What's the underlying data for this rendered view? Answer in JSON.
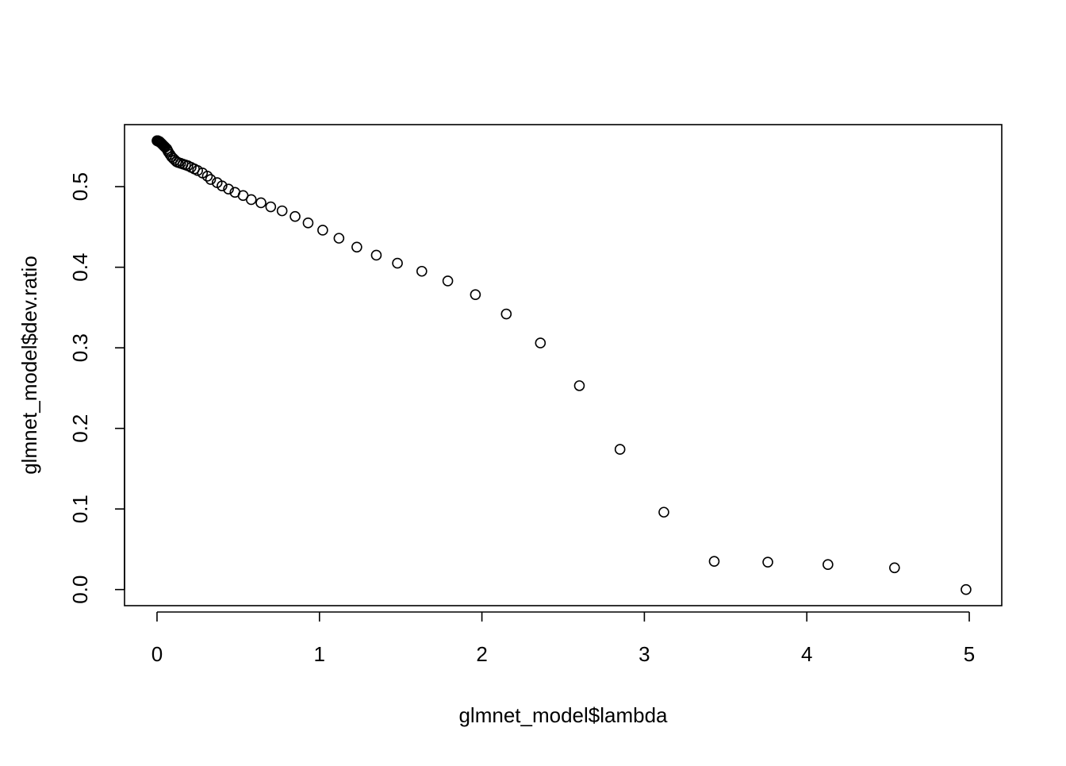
{
  "chart_data": {
    "type": "scatter",
    "title": "",
    "xlabel": "glmnet_model$lambda",
    "ylabel": "glmnet_model$dev.ratio",
    "xlim": [
      -0.2,
      5.2
    ],
    "ylim": [
      -0.02,
      0.577
    ],
    "x_ticks": [
      0,
      1,
      2,
      3,
      4,
      5
    ],
    "x_tick_labels": [
      "0",
      "1",
      "2",
      "3",
      "4",
      "5"
    ],
    "y_ticks": [
      0.0,
      0.1,
      0.2,
      0.3,
      0.4,
      0.5
    ],
    "y_tick_labels": [
      "0.0",
      "0.1",
      "0.2",
      "0.3",
      "0.4",
      "0.5"
    ],
    "grid": false,
    "legend": "none",
    "marker": "open-circle",
    "colors": {
      "points": "#000000",
      "axes": "#000000",
      "background": "#ffffff"
    },
    "series": [
      {
        "x": [
          4.98,
          4.54,
          4.13,
          3.76,
          3.43,
          3.12,
          2.85,
          2.6,
          2.36,
          2.15,
          1.96,
          1.79,
          1.63,
          1.48,
          1.35,
          1.23,
          1.12,
          1.02,
          0.93,
          0.85,
          0.77,
          0.7,
          0.64,
          0.58,
          0.53,
          0.48,
          0.44,
          0.4,
          0.37,
          0.33,
          0.31,
          0.28,
          0.25,
          0.23,
          0.21,
          0.19,
          0.175,
          0.16,
          0.145,
          0.13,
          0.12,
          0.11,
          0.1,
          0.09,
          0.08,
          0.07,
          0.065,
          0.06,
          0.05,
          0.045,
          0.04,
          0.035,
          0.03,
          0.025,
          0.02,
          0.015,
          0.01,
          0.005,
          0.002,
          0.0
        ],
        "y": [
          0.0,
          0.027,
          0.031,
          0.034,
          0.035,
          0.096,
          0.174,
          0.253,
          0.306,
          0.342,
          0.366,
          0.383,
          0.395,
          0.405,
          0.415,
          0.425,
          0.436,
          0.446,
          0.455,
          0.463,
          0.47,
          0.475,
          0.48,
          0.484,
          0.489,
          0.493,
          0.497,
          0.501,
          0.505,
          0.509,
          0.513,
          0.517,
          0.52,
          0.522,
          0.524,
          0.526,
          0.527,
          0.528,
          0.529,
          0.53,
          0.531,
          0.533,
          0.535,
          0.537,
          0.54,
          0.543,
          0.545,
          0.547,
          0.549,
          0.55,
          0.551,
          0.552,
          0.553,
          0.554,
          0.555,
          0.556,
          0.556,
          0.557,
          0.557,
          0.557
        ]
      }
    ]
  }
}
